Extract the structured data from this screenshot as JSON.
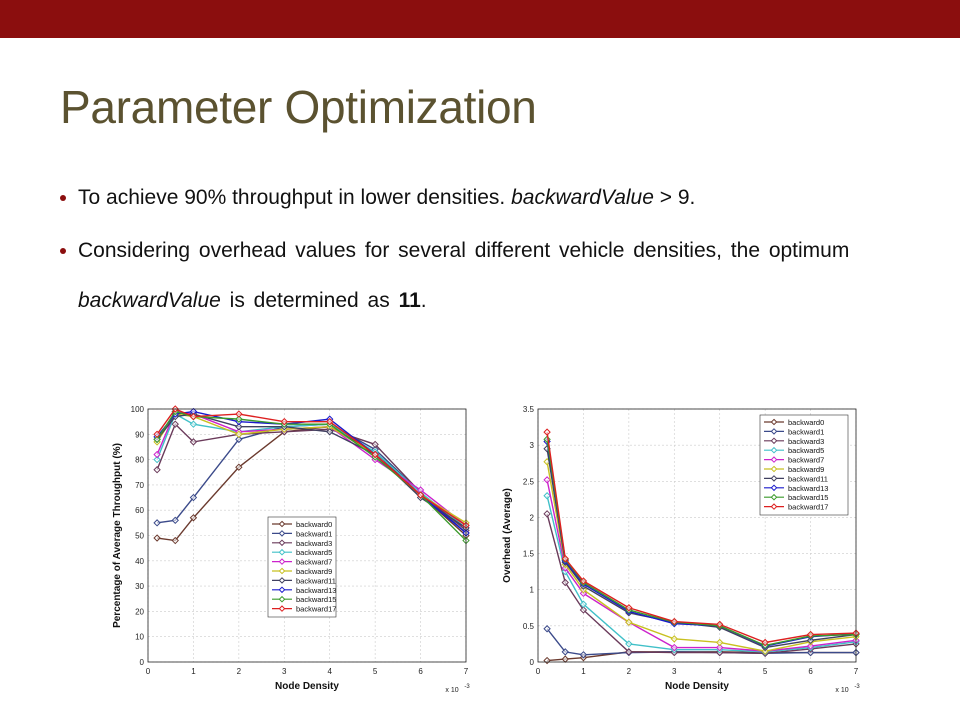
{
  "slide": {
    "title": "Parameter Optimization",
    "bullet1": {
      "text_a": "To achieve 90% throughput in lower densities. ",
      "italic": "backwardValue",
      "text_b": " > 9."
    },
    "bullet2": {
      "text_a": "Considering overhead values for several different vehicle densities, the optimum ",
      "italic": "backwardValue",
      "text_b": " is determined as ",
      "bold": "11",
      "text_c": "."
    }
  },
  "colors": {
    "topbar": "#8b0e0e",
    "title": "#5b5230"
  },
  "chart_data": [
    {
      "type": "line",
      "xlabel": "Node Density",
      "ylabel": "Percentage of Average Throughput (%)",
      "x_exponent_label": "x 10",
      "x_exponent_power": "-3",
      "xlim": [
        0,
        7
      ],
      "ylim": [
        0,
        100
      ],
      "xticks": [
        0,
        1,
        2,
        3,
        4,
        5,
        6,
        7
      ],
      "yticks": [
        0,
        10,
        20,
        30,
        40,
        50,
        60,
        70,
        80,
        90,
        100
      ],
      "grid": true,
      "legend_position": "bottom-center",
      "x": [
        0.2,
        0.6,
        1,
        2,
        3,
        4,
        5,
        6,
        7
      ],
      "series": [
        {
          "name": "backward0",
          "color": "#6b3a2e",
          "values": [
            49,
            48,
            57,
            77,
            91,
            93,
            83,
            66,
            50
          ]
        },
        {
          "name": "backward1",
          "color": "#3b4a8a",
          "values": [
            55,
            56,
            65,
            88,
            93,
            94,
            84,
            67,
            51
          ]
        },
        {
          "name": "backward3",
          "color": "#6a3a5a",
          "values": [
            76,
            94,
            87,
            90,
            91,
            92,
            86,
            67,
            52
          ]
        },
        {
          "name": "backward5",
          "color": "#40c0c8",
          "values": [
            80,
            98,
            94,
            91,
            93,
            94,
            83,
            67,
            53
          ]
        },
        {
          "name": "backward7",
          "color": "#cc22cc",
          "values": [
            82,
            99,
            98,
            91,
            92,
            93,
            80,
            68,
            54
          ]
        },
        {
          "name": "backward9",
          "color": "#c8c020",
          "values": [
            87,
            98,
            97,
            90,
            92,
            93,
            82,
            66,
            55
          ]
        },
        {
          "name": "backward11",
          "color": "#404060",
          "values": [
            88,
            97,
            98,
            93,
            93,
            91,
            82,
            65,
            53
          ]
        },
        {
          "name": "backward13",
          "color": "#1a1acc",
          "values": [
            89,
            98,
            99,
            95,
            94,
            96,
            82,
            66,
            51
          ]
        },
        {
          "name": "backward15",
          "color": "#3a9a2a",
          "values": [
            88,
            99,
            97,
            96,
            94,
            94,
            81,
            66,
            48
          ]
        },
        {
          "name": "backward17",
          "color": "#dd2020",
          "values": [
            90,
            100,
            97,
            98,
            95,
            95,
            82,
            66,
            54
          ]
        }
      ]
    },
    {
      "type": "line",
      "xlabel": "Node Density",
      "ylabel": "Overhead (Average)",
      "x_exponent_label": "x 10",
      "x_exponent_power": "-3",
      "xlim": [
        0,
        7
      ],
      "ylim": [
        0,
        3.5
      ],
      "xticks": [
        0,
        1,
        2,
        3,
        4,
        5,
        6,
        7
      ],
      "yticks": [
        0,
        0.5,
        1,
        1.5,
        2,
        2.5,
        3,
        3.5
      ],
      "grid": true,
      "legend_position": "top-right",
      "x": [
        0.2,
        0.6,
        1,
        2,
        3,
        4,
        5,
        6,
        7
      ],
      "series": [
        {
          "name": "backward0",
          "color": "#6b3a2e",
          "values": [
            0.02,
            0.04,
            0.06,
            0.14,
            0.14,
            0.14,
            0.13,
            0.13,
            0.13
          ]
        },
        {
          "name": "backward1",
          "color": "#3b4a8a",
          "values": [
            0.46,
            0.14,
            0.1,
            0.13,
            0.14,
            0.13,
            0.12,
            0.13,
            0.13
          ]
        },
        {
          "name": "backward3",
          "color": "#6a3a5a",
          "values": [
            2.05,
            1.1,
            0.72,
            0.14,
            0.13,
            0.13,
            0.12,
            0.18,
            0.25
          ]
        },
        {
          "name": "backward5",
          "color": "#40c0c8",
          "values": [
            2.3,
            1.25,
            0.8,
            0.25,
            0.17,
            0.17,
            0.14,
            0.2,
            0.28
          ]
        },
        {
          "name": "backward7",
          "color": "#cc22cc",
          "values": [
            2.52,
            1.3,
            0.95,
            0.55,
            0.2,
            0.2,
            0.15,
            0.22,
            0.3
          ]
        },
        {
          "name": "backward9",
          "color": "#c8c020",
          "values": [
            2.77,
            1.35,
            1.0,
            0.55,
            0.32,
            0.27,
            0.15,
            0.28,
            0.35
          ]
        },
        {
          "name": "backward11",
          "color": "#404060",
          "values": [
            2.95,
            1.38,
            1.05,
            0.68,
            0.55,
            0.48,
            0.2,
            0.3,
            0.38
          ]
        },
        {
          "name": "backward13",
          "color": "#1a1acc",
          "values": [
            3.05,
            1.4,
            1.08,
            0.7,
            0.53,
            0.5,
            0.22,
            0.35,
            0.39
          ]
        },
        {
          "name": "backward15",
          "color": "#3a9a2a",
          "values": [
            3.08,
            1.42,
            1.1,
            0.72,
            0.55,
            0.5,
            0.23,
            0.36,
            0.38
          ]
        },
        {
          "name": "backward17",
          "color": "#dd2020",
          "values": [
            3.18,
            1.43,
            1.12,
            0.75,
            0.56,
            0.52,
            0.27,
            0.38,
            0.4
          ]
        }
      ]
    }
  ]
}
